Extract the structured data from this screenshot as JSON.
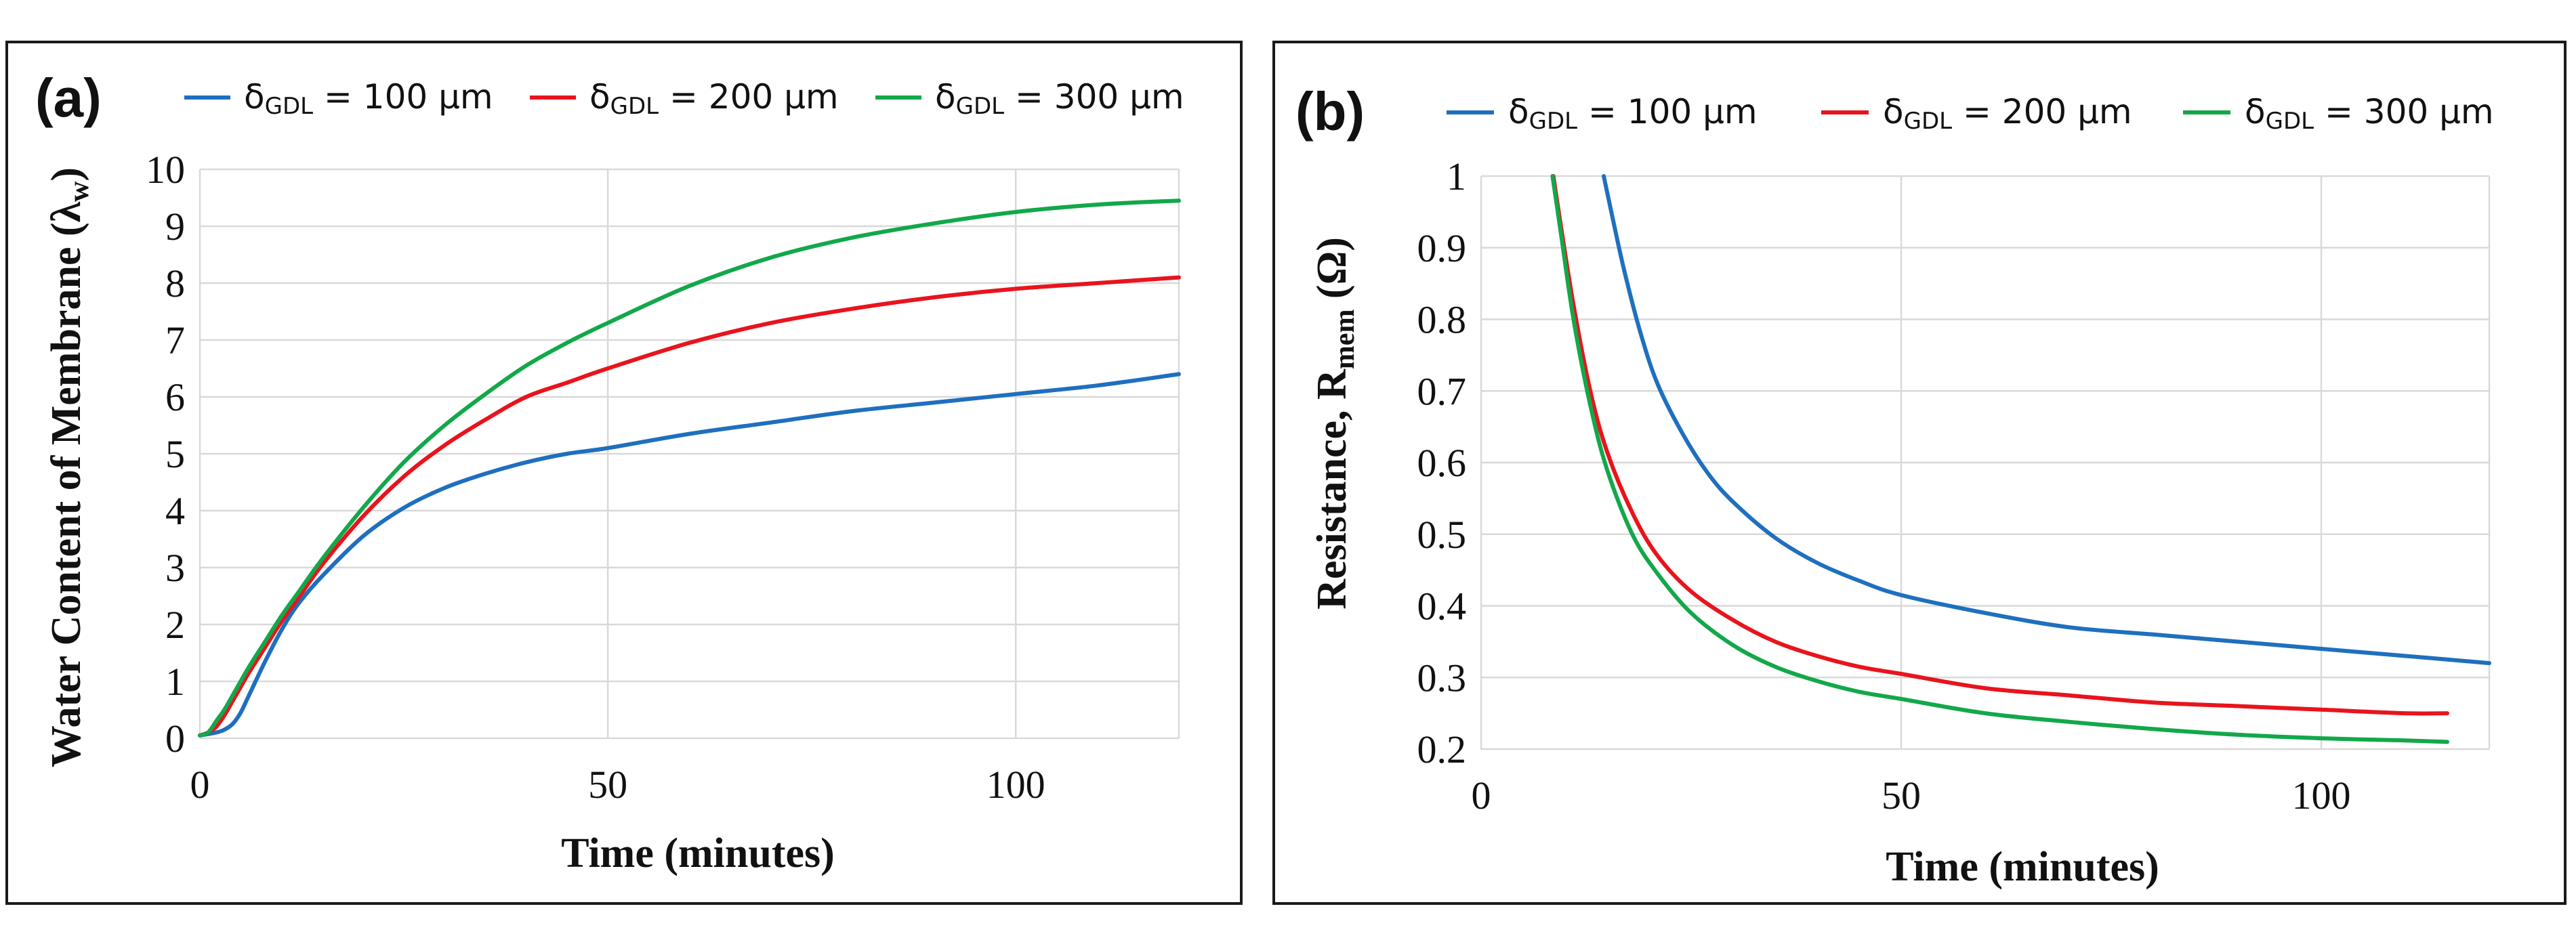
{
  "chart_data": [
    {
      "type": "line",
      "panel_label": "(a)",
      "xlabel": "Time (minutes)",
      "ylabel": "Water Content of Membrane (λw)",
      "ylabel_main": "Water Content of Membrane (λ",
      "ylabel_sub": "w",
      "ylabel_end": ")",
      "xlim": [
        0,
        120
      ],
      "ylim": [
        0,
        10
      ],
      "x_ticks": [
        0,
        50,
        100
      ],
      "y_ticks": [
        0,
        1,
        2,
        3,
        4,
        5,
        6,
        7,
        8,
        9,
        10
      ],
      "x_tick_labels": [
        "0",
        "50",
        "100"
      ],
      "y_tick_labels": [
        "0",
        "1",
        "2",
        "3",
        "4",
        "5",
        "6",
        "7",
        "8",
        "9",
        "10"
      ],
      "grid": true,
      "legend_position": "top",
      "series": [
        {
          "name": "δGDL = 100 μm",
          "legend_main": "δ",
          "legend_sub": "GDL",
          "legend_rest": " = 100 μm",
          "color": "#1f6fbf",
          "x": [
            0,
            2,
            3,
            4,
            5,
            6,
            8,
            10,
            12,
            15,
            20,
            25,
            30,
            35,
            40,
            45,
            50,
            60,
            70,
            80,
            90,
            100,
            110,
            120
          ],
          "y": [
            0.05,
            0.1,
            0.15,
            0.25,
            0.45,
            0.75,
            1.35,
            1.9,
            2.35,
            2.85,
            3.55,
            4.05,
            4.4,
            4.65,
            4.85,
            5.0,
            5.1,
            5.35,
            5.55,
            5.75,
            5.9,
            6.05,
            6.2,
            6.4
          ]
        },
        {
          "name": "δGDL = 200 μm",
          "legend_main": "δ",
          "legend_sub": "GDL",
          "legend_rest": " = 200 μm",
          "color": "#e8141c",
          "x": [
            0,
            1,
            2,
            3,
            4,
            5,
            6,
            8,
            10,
            12,
            15,
            20,
            25,
            30,
            35,
            40,
            45,
            50,
            60,
            70,
            80,
            90,
            100,
            110,
            120
          ],
          "y": [
            0.05,
            0.1,
            0.2,
            0.4,
            0.65,
            0.9,
            1.15,
            1.6,
            2.05,
            2.45,
            3.05,
            3.9,
            4.6,
            5.15,
            5.6,
            6.0,
            6.25,
            6.5,
            6.95,
            7.3,
            7.55,
            7.75,
            7.9,
            8.0,
            8.1
          ]
        },
        {
          "name": "δGDL = 300 μm",
          "legend_main": "δ",
          "legend_sub": "GDL",
          "legend_rest": " = 300 μm",
          "color": "#12a84a",
          "x": [
            0,
            1,
            2,
            3,
            4,
            5,
            6,
            8,
            10,
            12,
            15,
            20,
            25,
            30,
            35,
            40,
            45,
            50,
            60,
            70,
            80,
            90,
            100,
            110,
            120
          ],
          "y": [
            0.05,
            0.1,
            0.3,
            0.5,
            0.75,
            1.0,
            1.25,
            1.7,
            2.15,
            2.55,
            3.15,
            4.05,
            4.85,
            5.5,
            6.05,
            6.55,
            6.95,
            7.3,
            7.95,
            8.45,
            8.8,
            9.05,
            9.25,
            9.38,
            9.45
          ]
        }
      ]
    },
    {
      "type": "line",
      "panel_label": "(b)",
      "xlabel": "Time (minutes)",
      "ylabel": "Resistance, Rmem (Ω)",
      "ylabel_main": "Resistance, R",
      "ylabel_sub": "mem",
      "ylabel_end": " (Ω)",
      "xlim": [
        0,
        120
      ],
      "ylim": [
        0.2,
        1
      ],
      "x_ticks": [
        0,
        50,
        100
      ],
      "y_ticks": [
        0.2,
        0.3,
        0.4,
        0.5,
        0.6,
        0.7,
        0.8,
        0.9,
        1.0
      ],
      "x_tick_labels": [
        "0",
        "50",
        "100"
      ],
      "y_tick_labels": [
        "0.2",
        "0.3",
        "0.4",
        "0.5",
        "0.6",
        "0.7",
        "0.8",
        "0.9",
        "1"
      ],
      "grid": true,
      "legend_position": "top",
      "series": [
        {
          "name": "δGDL = 100 μm",
          "legend_main": "δ",
          "legend_sub": "GDL",
          "legend_rest": " = 100 μm",
          "color": "#1f6fbf",
          "x": [
            14.6,
            15.5,
            17,
            19,
            21,
            24,
            27,
            30,
            35,
            40,
            45,
            50,
            60,
            70,
            80,
            90,
            100,
            110,
            120
          ],
          "y": [
            1.0,
            0.95,
            0.87,
            0.78,
            0.71,
            0.64,
            0.585,
            0.545,
            0.495,
            0.46,
            0.435,
            0.415,
            0.39,
            0.37,
            0.36,
            0.35,
            0.34,
            0.33,
            0.32
          ]
        },
        {
          "name": "δGDL = 200 μm",
          "legend_main": "δ",
          "legend_sub": "GDL",
          "legend_rest": " = 200 μm",
          "color": "#e8141c",
          "x": [
            8.6,
            9.5,
            11,
            13,
            15,
            18,
            21,
            25,
            30,
            35,
            40,
            45,
            50,
            60,
            70,
            80,
            90,
            100,
            110,
            115
          ],
          "y": [
            1.0,
            0.93,
            0.82,
            0.7,
            0.615,
            0.53,
            0.47,
            0.42,
            0.38,
            0.35,
            0.33,
            0.315,
            0.305,
            0.285,
            0.275,
            0.265,
            0.26,
            0.255,
            0.25,
            0.25
          ]
        },
        {
          "name": "δGDL = 300 μm",
          "legend_main": "δ",
          "legend_sub": "GDL",
          "legend_rest": " = 300 μm",
          "color": "#12a84a",
          "x": [
            8.5,
            9.5,
            11,
            13,
            15,
            18,
            21,
            25,
            30,
            35,
            40,
            45,
            50,
            60,
            70,
            80,
            90,
            100,
            110,
            115
          ],
          "y": [
            1.0,
            0.92,
            0.8,
            0.68,
            0.59,
            0.5,
            0.445,
            0.39,
            0.345,
            0.315,
            0.295,
            0.28,
            0.27,
            0.25,
            0.238,
            0.228,
            0.22,
            0.215,
            0.212,
            0.21
          ]
        }
      ]
    }
  ]
}
